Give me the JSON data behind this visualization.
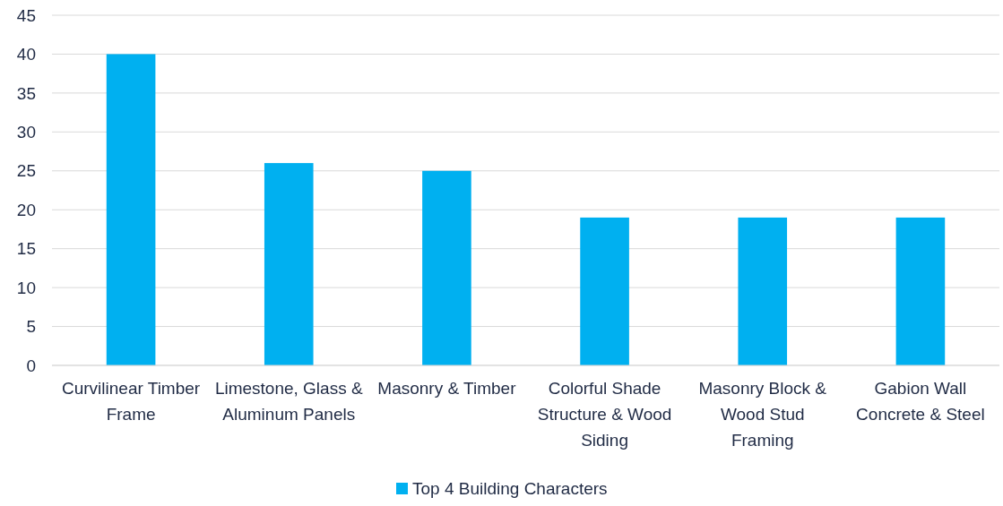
{
  "chart_data": {
    "type": "bar",
    "categories": [
      "Curvilinear Timber Frame",
      "Limestone, Glass & Aluminum Panels",
      "Masonry & Timber",
      "Colorful Shade Structure & Wood Siding",
      "Masonry Block & Wood Stud Framing",
      "Gabion Wall Concrete & Steel"
    ],
    "series": [
      {
        "name": "Top 4 Building Characters",
        "color": "#00b0f0",
        "values": [
          40,
          26,
          25,
          19,
          19,
          19
        ]
      }
    ],
    "ylim": [
      0,
      45
    ],
    "yticks": [
      0,
      5,
      10,
      15,
      20,
      25,
      30,
      35,
      40,
      45
    ],
    "grid": "y",
    "legend": "bottom"
  }
}
